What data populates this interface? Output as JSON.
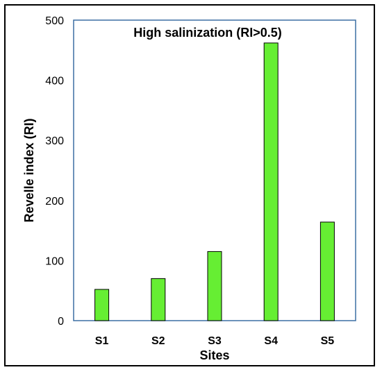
{
  "chart_data": {
    "type": "bar",
    "title": "High salinization (RI>0.5)",
    "xlabel": "Sites",
    "ylabel": "Revelle index (RI)",
    "categories": [
      "S1",
      "S2",
      "S3",
      "S4",
      "S5"
    ],
    "values": [
      52,
      70,
      115,
      462,
      164
    ],
    "ylim": [
      0,
      500
    ],
    "yticks": [
      0,
      100,
      200,
      300,
      400,
      500
    ],
    "grid": false,
    "legend": "none",
    "bar_color": "#66ee33",
    "bar_edge_color": "#000000",
    "plot_border_color": "#3b6fa3"
  }
}
